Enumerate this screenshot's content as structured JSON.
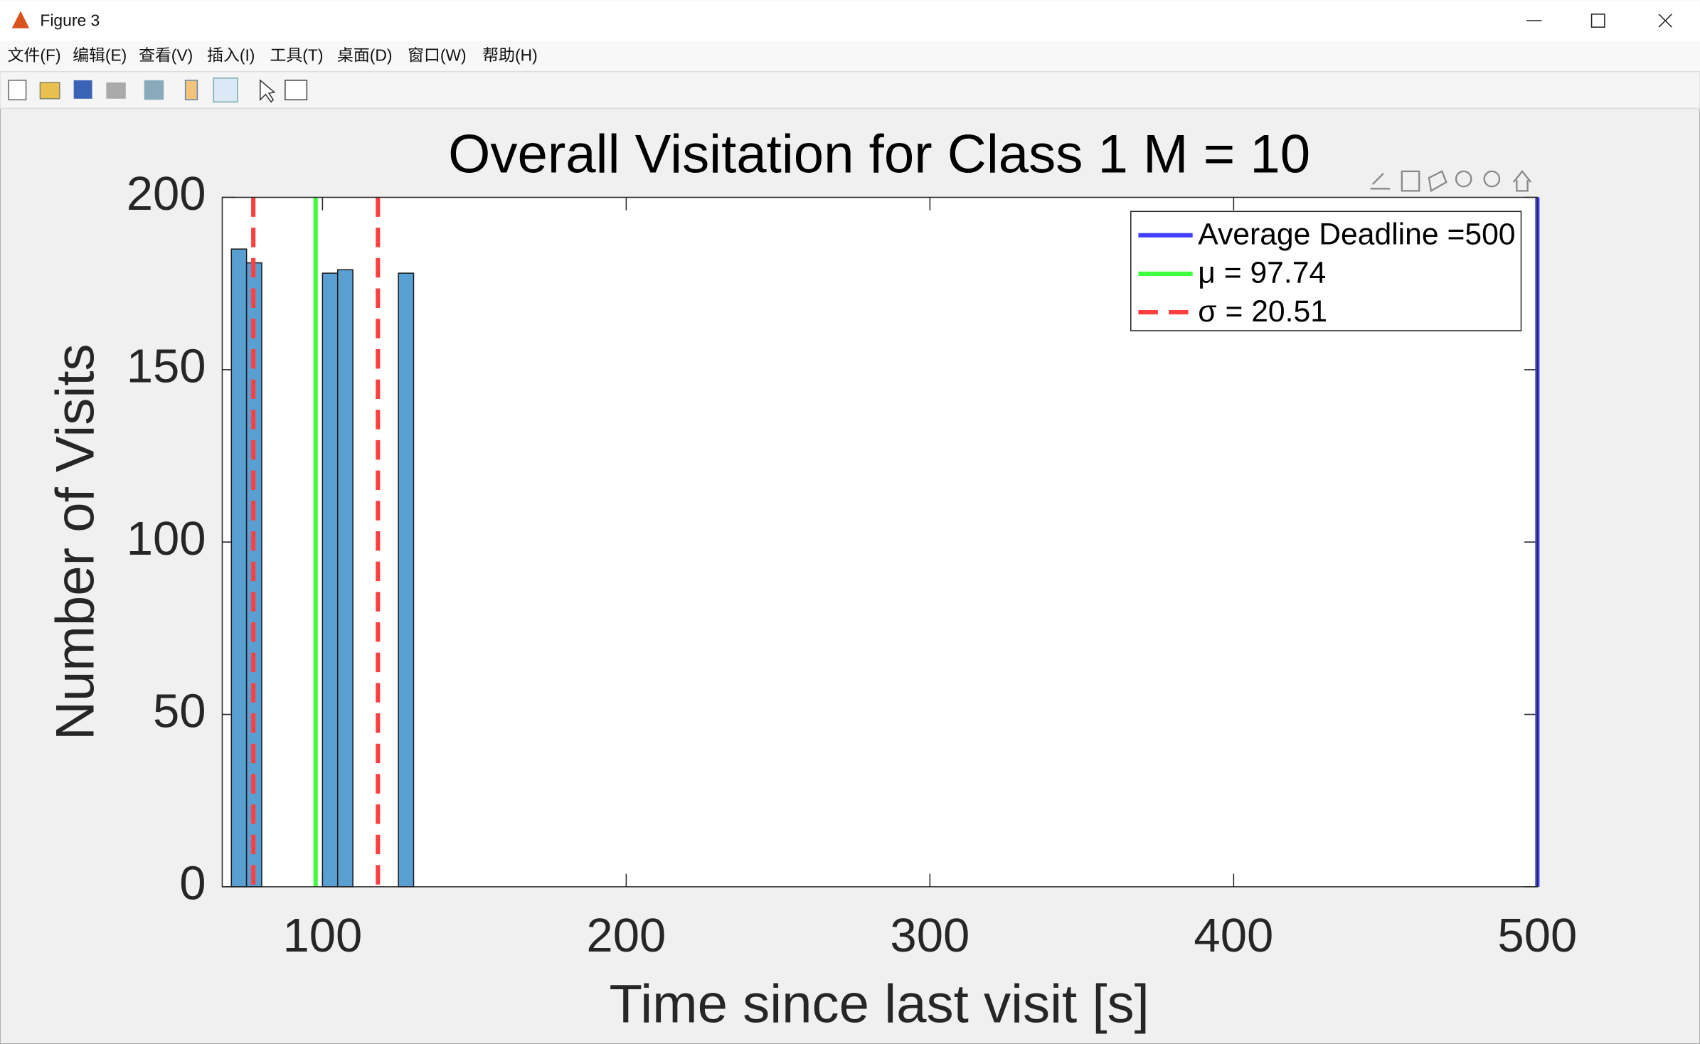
{
  "window": {
    "title": "Figure 3",
    "menu": [
      "文件(F)",
      "编辑(E)",
      "查看(V)",
      "插入(I)",
      "工具(T)",
      "桌面(D)",
      "窗口(W)",
      "帮助(H)"
    ]
  },
  "chart_data": {
    "type": "histogram",
    "title": "Overall Visitation for Class 1 M = 10",
    "x_label": "Time since last visit [s]",
    "y_label": "Number of Visits",
    "bins": [
      70,
      75,
      80,
      85,
      90,
      95,
      100,
      105,
      110,
      115,
      120,
      125,
      130
    ],
    "values": [
      185,
      181,
      0,
      0,
      0,
      0,
      178,
      179,
      0,
      0,
      0,
      178
    ],
    "color": "#5a9fd2",
    "xlim": [
      67,
      500
    ],
    "ylim": [
      0,
      200
    ],
    "xticks": [
      100,
      200,
      300,
      400,
      500
    ],
    "yticks": [
      0,
      50,
      100,
      150,
      200
    ],
    "lines": [
      {
        "label": "Average Deadline =500",
        "value": 500,
        "color": "#4040ff"
      },
      {
        "label": "μ = 97.74",
        "value": 97.74,
        "color": "#40ff40"
      },
      {
        "label": "σ = 20.51",
        "value": 20.51,
        "color": "#ff4040",
        "dashed": true
      }
    ],
    "legend": "top-right"
  }
}
